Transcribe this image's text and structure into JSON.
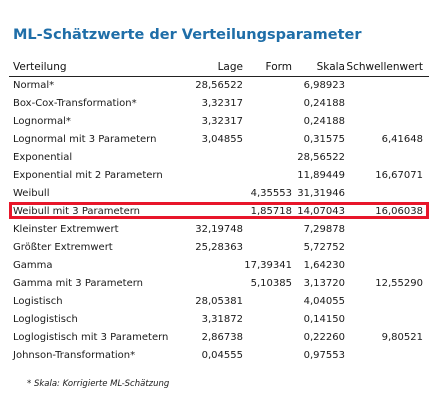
{
  "title": "ML-Schätzwerte der Verteilungsparameter",
  "columns": {
    "verteilung": "Verteilung",
    "lage": "Lage",
    "form": "Form",
    "skala": "Skala",
    "schwellenwert": "Schwellenwert"
  },
  "rows": [
    {
      "name": "Normal*",
      "lage": "28,56522",
      "form": "",
      "skala": "6,98923",
      "schwellenwert": ""
    },
    {
      "name": "Box-Cox-Transformation*",
      "lage": "3,32317",
      "form": "",
      "skala": "0,24188",
      "schwellenwert": ""
    },
    {
      "name": "Lognormal*",
      "lage": "3,32317",
      "form": "",
      "skala": "0,24188",
      "schwellenwert": ""
    },
    {
      "name": "Lognormal mit 3 Parametern",
      "lage": "3,04855",
      "form": "",
      "skala": "0,31575",
      "schwellenwert": "6,41648"
    },
    {
      "name": "Exponential",
      "lage": "",
      "form": "",
      "skala": "28,56522",
      "schwellenwert": ""
    },
    {
      "name": "Exponential mit 2 Parametern",
      "lage": "",
      "form": "",
      "skala": "11,89449",
      "schwellenwert": "16,67071"
    },
    {
      "name": "Weibull",
      "lage": "",
      "form": "4,35553",
      "skala": "31,31946",
      "schwellenwert": ""
    },
    {
      "name": "Weibull mit 3 Parametern",
      "lage": "",
      "form": "1,85718",
      "skala": "14,07043",
      "schwellenwert": "16,06038"
    },
    {
      "name": "Kleinster Extremwert",
      "lage": "32,19748",
      "form": "",
      "skala": "7,29878",
      "schwellenwert": ""
    },
    {
      "name": "Größter Extremwert",
      "lage": "25,28363",
      "form": "",
      "skala": "5,72752",
      "schwellenwert": ""
    },
    {
      "name": "Gamma",
      "lage": "",
      "form": "17,39341",
      "skala": "1,64230",
      "schwellenwert": ""
    },
    {
      "name": "Gamma mit 3 Parametern",
      "lage": "",
      "form": "5,10385",
      "skala": "3,13720",
      "schwellenwert": "12,55290"
    },
    {
      "name": "Logistisch",
      "lage": "28,05381",
      "form": "",
      "skala": "4,04055",
      "schwellenwert": ""
    },
    {
      "name": "Loglogistisch",
      "lage": "3,31872",
      "form": "",
      "skala": "0,14150",
      "schwellenwert": ""
    },
    {
      "name": "Loglogistisch mit 3 Parametern",
      "lage": "2,86738",
      "form": "",
      "skala": "0,22260",
      "schwellenwert": "9,80521"
    },
    {
      "name": "Johnson-Transformation*",
      "lage": "0,04555",
      "form": "",
      "skala": "0,97553",
      "schwellenwert": ""
    }
  ],
  "highlight_color": "#e8162a",
  "title_color": "#1f6ea8",
  "footnote": "* Skala: Korrigierte ML-Schätzung"
}
